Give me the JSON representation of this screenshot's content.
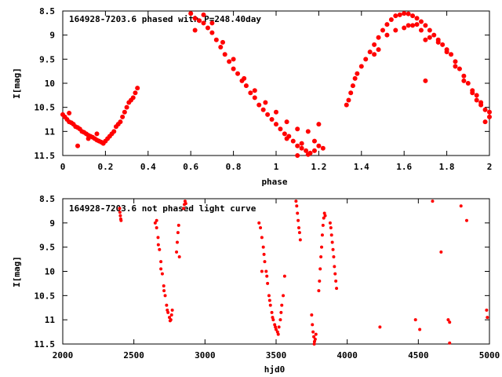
{
  "marker_color": "#ff0000",
  "chart_data": [
    {
      "type": "scatter",
      "title": "164928-7203.6 phased with P=248.40day",
      "xlabel": "phase",
      "ylabel": "I[mag]",
      "xlim": [
        0,
        2
      ],
      "ylim": [
        8.5,
        11.5
      ],
      "y_inverted": true,
      "grid": false,
      "xticks": [
        "0",
        "0.2",
        "0.4",
        "0.6",
        "0.8",
        "1",
        "1.2",
        "1.4",
        "1.6",
        "1.8",
        "2"
      ],
      "yticks": [
        "8.5",
        "9",
        "9.5",
        "10",
        "10.5",
        "11",
        "11.5"
      ],
      "points": [
        [
          0.0,
          10.65
        ],
        [
          0.01,
          10.7
        ],
        [
          0.02,
          10.75
        ],
        [
          0.03,
          10.8
        ],
        [
          0.04,
          10.82
        ],
        [
          0.05,
          10.85
        ],
        [
          0.06,
          10.9
        ],
        [
          0.07,
          10.92
        ],
        [
          0.08,
          10.95
        ],
        [
          0.09,
          11.0
        ],
        [
          0.1,
          11.02
        ],
        [
          0.11,
          11.05
        ],
        [
          0.12,
          11.08
        ],
        [
          0.13,
          11.1
        ],
        [
          0.14,
          11.12
        ],
        [
          0.15,
          11.15
        ],
        [
          0.16,
          11.18
        ],
        [
          0.17,
          11.2
        ],
        [
          0.18,
          11.22
        ],
        [
          0.19,
          11.25
        ],
        [
          0.2,
          11.2
        ],
        [
          0.21,
          11.15
        ],
        [
          0.22,
          11.1
        ],
        [
          0.23,
          11.05
        ],
        [
          0.24,
          11.0
        ],
        [
          0.25,
          10.9
        ],
        [
          0.26,
          10.85
        ],
        [
          0.27,
          10.8
        ],
        [
          0.28,
          10.7
        ],
        [
          0.29,
          10.6
        ],
        [
          0.3,
          10.5
        ],
        [
          0.31,
          10.4
        ],
        [
          0.32,
          10.35
        ],
        [
          0.33,
          10.3
        ],
        [
          0.34,
          10.2
        ],
        [
          0.35,
          10.1
        ],
        [
          0.07,
          11.3
        ],
        [
          0.12,
          11.15
        ],
        [
          0.16,
          11.05
        ],
        [
          0.03,
          10.62
        ],
        [
          0.6,
          8.55
        ],
        [
          0.62,
          8.65
        ],
        [
          0.64,
          8.7
        ],
        [
          0.66,
          8.75
        ],
        [
          0.68,
          8.85
        ],
        [
          0.7,
          8.95
        ],
        [
          0.72,
          9.1
        ],
        [
          0.74,
          9.25
        ],
        [
          0.76,
          9.4
        ],
        [
          0.78,
          9.55
        ],
        [
          0.8,
          9.7
        ],
        [
          0.82,
          9.8
        ],
        [
          0.84,
          9.95
        ],
        [
          0.86,
          10.05
        ],
        [
          0.88,
          10.2
        ],
        [
          0.9,
          10.3
        ],
        [
          0.92,
          10.45
        ],
        [
          0.94,
          10.55
        ],
        [
          0.96,
          10.65
        ],
        [
          0.98,
          10.75
        ],
        [
          1.0,
          10.85
        ],
        [
          1.02,
          10.95
        ],
        [
          1.04,
          11.05
        ],
        [
          1.06,
          11.1
        ],
        [
          1.08,
          11.2
        ],
        [
          1.1,
          11.3
        ],
        [
          1.12,
          11.35
        ],
        [
          1.14,
          11.4
        ],
        [
          1.16,
          11.45
        ],
        [
          1.18,
          11.4
        ],
        [
          1.2,
          11.3
        ],
        [
          1.22,
          11.35
        ],
        [
          0.66,
          8.58
        ],
        [
          0.7,
          8.75
        ],
        [
          0.75,
          9.15
        ],
        [
          0.8,
          9.5
        ],
        [
          0.85,
          9.9
        ],
        [
          0.9,
          10.15
        ],
        [
          0.95,
          10.4
        ],
        [
          1.0,
          10.6
        ],
        [
          1.05,
          10.8
        ],
        [
          1.1,
          10.95
        ],
        [
          1.15,
          11.0
        ],
        [
          1.2,
          10.85
        ],
        [
          1.05,
          11.15
        ],
        [
          1.12,
          11.25
        ],
        [
          1.18,
          11.2
        ],
        [
          1.1,
          11.5
        ],
        [
          1.15,
          11.48
        ],
        [
          0.62,
          8.9
        ],
        [
          1.33,
          10.45
        ],
        [
          1.34,
          10.35
        ],
        [
          1.35,
          10.2
        ],
        [
          1.36,
          10.05
        ],
        [
          1.37,
          9.9
        ],
        [
          1.38,
          9.8
        ],
        [
          1.4,
          9.65
        ],
        [
          1.42,
          9.5
        ],
        [
          1.44,
          9.35
        ],
        [
          1.46,
          9.2
        ],
        [
          1.48,
          9.05
        ],
        [
          1.5,
          8.9
        ],
        [
          1.52,
          8.78
        ],
        [
          1.54,
          8.68
        ],
        [
          1.56,
          8.6
        ],
        [
          1.58,
          8.58
        ],
        [
          1.6,
          8.55
        ],
        [
          1.62,
          8.56
        ],
        [
          1.64,
          8.6
        ],
        [
          1.66,
          8.65
        ],
        [
          1.68,
          8.72
        ],
        [
          1.7,
          8.8
        ],
        [
          1.72,
          8.9
        ],
        [
          1.74,
          9.0
        ],
        [
          1.76,
          9.1
        ],
        [
          1.78,
          9.2
        ],
        [
          1.8,
          9.3
        ],
        [
          1.82,
          9.4
        ],
        [
          1.84,
          9.55
        ],
        [
          1.86,
          9.7
        ],
        [
          1.88,
          9.85
        ],
        [
          1.9,
          10.0
        ],
        [
          1.92,
          10.15
        ],
        [
          1.94,
          10.25
        ],
        [
          1.96,
          10.4
        ],
        [
          1.98,
          10.55
        ],
        [
          2.0,
          10.7
        ],
        [
          1.52,
          9.0
        ],
        [
          1.56,
          8.9
        ],
        [
          1.6,
          8.85
        ],
        [
          1.64,
          8.8
        ],
        [
          1.68,
          8.9
        ],
        [
          1.72,
          9.05
        ],
        [
          1.76,
          9.15
        ],
        [
          1.8,
          9.35
        ],
        [
          1.84,
          9.65
        ],
        [
          1.88,
          9.95
        ],
        [
          1.92,
          10.2
        ],
        [
          1.96,
          10.45
        ],
        [
          2.0,
          10.6
        ],
        [
          1.7,
          9.95
        ],
        [
          1.98,
          10.8
        ],
        [
          1.94,
          10.35
        ],
        [
          1.46,
          9.4
        ],
        [
          1.48,
          9.3
        ],
        [
          1.62,
          8.8
        ],
        [
          1.66,
          8.78
        ],
        [
          1.7,
          9.1
        ]
      ]
    },
    {
      "type": "scatter",
      "title": "164928-7203.6 not phased light curve",
      "xlabel": "hjd0",
      "ylabel": "I[mag]",
      "xlim": [
        2000,
        5000
      ],
      "ylim": [
        8.5,
        11.5
      ],
      "y_inverted": true,
      "grid": false,
      "xticks": [
        "2000",
        "2500",
        "3000",
        "3500",
        "4000",
        "4500",
        "5000"
      ],
      "yticks": [
        "8.5",
        "9",
        "9.5",
        "10",
        "10.5",
        "11",
        "11.5"
      ],
      "points": [
        [
          2400,
          8.7
        ],
        [
          2402,
          8.78
        ],
        [
          2405,
          8.85
        ],
        [
          2408,
          8.92
        ],
        [
          2410,
          8.95
        ],
        [
          2650,
          9.0
        ],
        [
          2660,
          9.1
        ],
        [
          2670,
          9.3
        ],
        [
          2680,
          9.55
        ],
        [
          2690,
          9.8
        ],
        [
          2700,
          10.05
        ],
        [
          2710,
          10.3
        ],
        [
          2720,
          10.5
        ],
        [
          2730,
          10.7
        ],
        [
          2740,
          10.85
        ],
        [
          2750,
          10.95
        ],
        [
          2760,
          11.0
        ],
        [
          2765,
          10.9
        ],
        [
          2770,
          10.8
        ],
        [
          2660,
          8.95
        ],
        [
          2672,
          9.45
        ],
        [
          2690,
          9.95
        ],
        [
          2712,
          10.4
        ],
        [
          2735,
          10.8
        ],
        [
          2755,
          11.02
        ],
        [
          2800,
          9.6
        ],
        [
          2805,
          9.4
        ],
        [
          2810,
          9.2
        ],
        [
          2815,
          9.05
        ],
        [
          2820,
          9.7
        ],
        [
          2850,
          8.7
        ],
        [
          2855,
          8.62
        ],
        [
          2860,
          8.55
        ],
        [
          2865,
          8.6
        ],
        [
          3380,
          9.0
        ],
        [
          3390,
          9.1
        ],
        [
          3400,
          9.3
        ],
        [
          3410,
          9.5
        ],
        [
          3420,
          9.8
        ],
        [
          3430,
          10.0
        ],
        [
          3440,
          10.25
        ],
        [
          3450,
          10.5
        ],
        [
          3460,
          10.7
        ],
        [
          3470,
          10.85
        ],
        [
          3480,
          11.0
        ],
        [
          3490,
          11.1
        ],
        [
          3500,
          11.2
        ],
        [
          3510,
          11.25
        ],
        [
          3520,
          11.15
        ],
        [
          3530,
          11.0
        ],
        [
          3540,
          10.7
        ],
        [
          3550,
          10.5
        ],
        [
          3400,
          10.0
        ],
        [
          3415,
          9.65
        ],
        [
          3435,
          10.1
        ],
        [
          3455,
          10.6
        ],
        [
          3475,
          10.95
        ],
        [
          3495,
          11.15
        ],
        [
          3515,
          11.3
        ],
        [
          3535,
          10.85
        ],
        [
          3560,
          10.1
        ],
        [
          3640,
          8.55
        ],
        [
          3645,
          8.65
        ],
        [
          3650,
          8.8
        ],
        [
          3655,
          8.95
        ],
        [
          3660,
          9.1
        ],
        [
          3665,
          9.2
        ],
        [
          3670,
          9.35
        ],
        [
          3750,
          10.9
        ],
        [
          3755,
          11.1
        ],
        [
          3760,
          11.25
        ],
        [
          3765,
          11.35
        ],
        [
          3770,
          11.45
        ],
        [
          3775,
          11.4
        ],
        [
          3780,
          11.3
        ],
        [
          3768,
          11.5
        ],
        [
          3800,
          10.4
        ],
        [
          3805,
          10.2
        ],
        [
          3810,
          9.95
        ],
        [
          3815,
          9.7
        ],
        [
          3820,
          9.5
        ],
        [
          3825,
          9.25
        ],
        [
          3830,
          9.05
        ],
        [
          3835,
          8.9
        ],
        [
          3840,
          8.8
        ],
        [
          3845,
          8.85
        ],
        [
          3880,
          9.0
        ],
        [
          3885,
          9.1
        ],
        [
          3890,
          9.25
        ],
        [
          3895,
          9.4
        ],
        [
          3900,
          9.55
        ],
        [
          3905,
          9.7
        ],
        [
          3910,
          9.9
        ],
        [
          3915,
          10.05
        ],
        [
          3920,
          10.2
        ],
        [
          3925,
          10.35
        ],
        [
          4230,
          11.15
        ],
        [
          4480,
          11.0
        ],
        [
          4510,
          11.2
        ],
        [
          4600,
          8.55
        ],
        [
          4660,
          9.6
        ],
        [
          4710,
          11.0
        ],
        [
          4720,
          11.05
        ],
        [
          4720,
          11.48
        ],
        [
          4800,
          8.65
        ],
        [
          4840,
          8.95
        ],
        [
          4980,
          10.8
        ],
        [
          4985,
          10.95
        ]
      ]
    }
  ]
}
